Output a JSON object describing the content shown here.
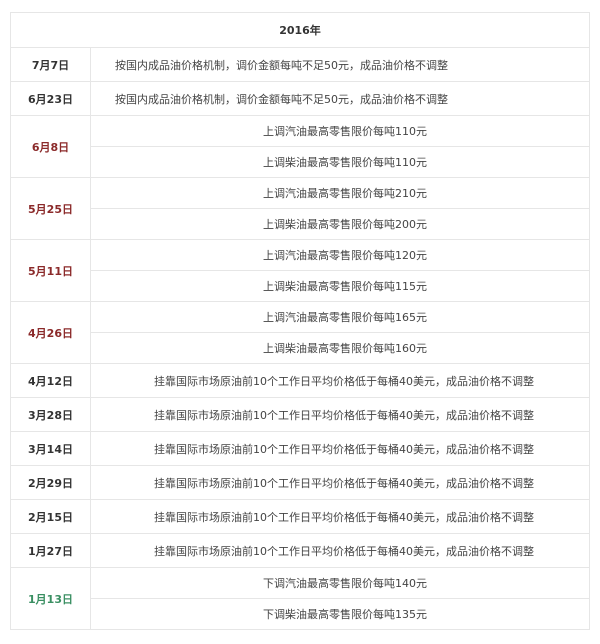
{
  "header": {
    "title": "2016年"
  },
  "colors": {
    "up": "#8b2a2a",
    "down": "#3a8f62",
    "normal": "#333333"
  },
  "rows": [
    {
      "date": "7月7日",
      "type": "normal",
      "align": "left",
      "items": [
        "按国内成品油价格机制，调价金额每吨不足50元，成品油价格不调整"
      ]
    },
    {
      "date": "6月23日",
      "type": "normal",
      "align": "left",
      "items": [
        "按国内成品油价格机制，调价金额每吨不足50元，成品油价格不调整"
      ]
    },
    {
      "date": "6月8日",
      "type": "up",
      "items": [
        "上调汽油最高零售限价每吨110元",
        "上调柴油最高零售限价每吨110元"
      ]
    },
    {
      "date": "5月25日",
      "type": "up",
      "items": [
        "上调汽油最高零售限价每吨210元",
        "上调柴油最高零售限价每吨200元"
      ]
    },
    {
      "date": "5月11日",
      "type": "up",
      "items": [
        "上调汽油最高零售限价每吨120元",
        "上调柴油最高零售限价每吨115元"
      ]
    },
    {
      "date": "4月26日",
      "type": "up",
      "items": [
        "上调汽油最高零售限价每吨165元",
        "上调柴油最高零售限价每吨160元"
      ]
    },
    {
      "date": "4月12日",
      "type": "normal",
      "items": [
        "挂靠国际市场原油前10个工作日平均价格低于每桶40美元，成品油价格不调整"
      ]
    },
    {
      "date": "3月28日",
      "type": "normal",
      "items": [
        "挂靠国际市场原油前10个工作日平均价格低于每桶40美元，成品油价格不调整"
      ]
    },
    {
      "date": "3月14日",
      "type": "normal",
      "items": [
        "挂靠国际市场原油前10个工作日平均价格低于每桶40美元，成品油价格不调整"
      ]
    },
    {
      "date": "2月29日",
      "type": "normal",
      "items": [
        "挂靠国际市场原油前10个工作日平均价格低于每桶40美元，成品油价格不调整"
      ]
    },
    {
      "date": "2月15日",
      "type": "normal",
      "items": [
        "挂靠国际市场原油前10个工作日平均价格低于每桶40美元，成品油价格不调整"
      ]
    },
    {
      "date": "1月27日",
      "type": "normal",
      "items": [
        "挂靠国际市场原油前10个工作日平均价格低于每桶40美元，成品油价格不调整"
      ]
    },
    {
      "date": "1月13日",
      "type": "down",
      "items": [
        "下调汽油最高零售限价每吨140元",
        "下调柴油最高零售限价每吨135元"
      ]
    }
  ]
}
